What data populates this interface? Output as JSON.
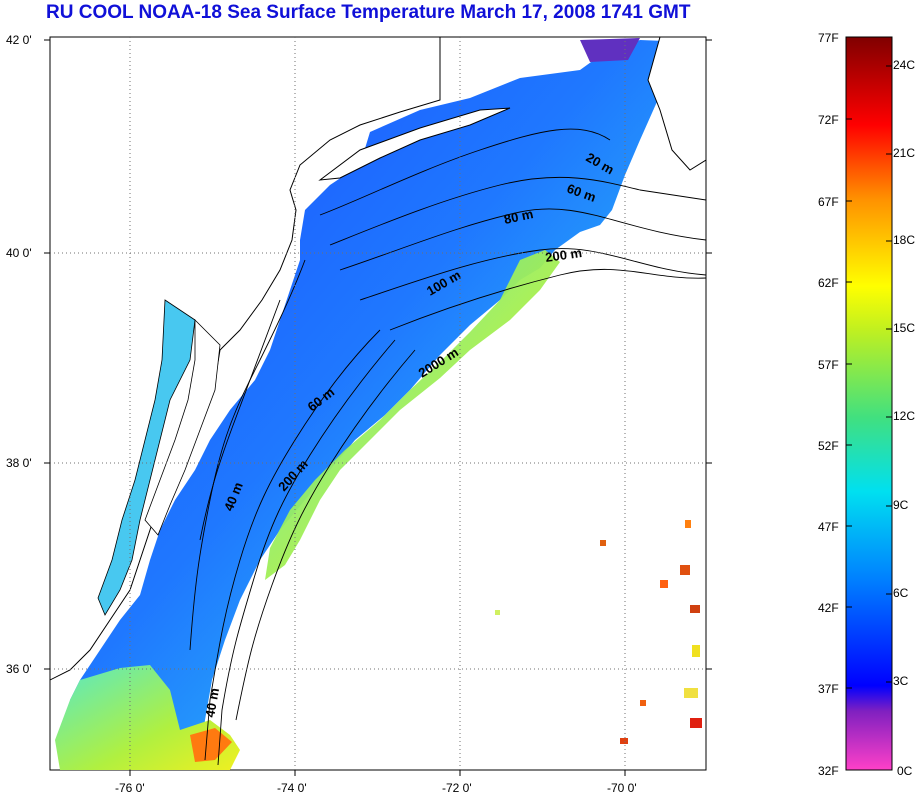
{
  "title": "RU COOL  NOAA-18 Sea Surface Temperature March 17, 2008 1741 GMT",
  "map": {
    "lat_labels": [
      "42 0'",
      "40 0'",
      "38 0'",
      "36 0'"
    ],
    "lon_labels": [
      "-76 0'",
      "-74 0'",
      "-72 0'",
      "-70 0'"
    ],
    "grid": "dotted",
    "contour_labels": [
      "20 m",
      "60 m",
      "80 m",
      "200 m",
      "100 m",
      "2000 m",
      "60 m",
      "200 m",
      "40 m",
      "40 m"
    ]
  },
  "colorbar": {
    "fahrenheit_labels": [
      "77F",
      "72F",
      "67F",
      "62F",
      "57F",
      "52F",
      "47F",
      "42F",
      "37F",
      "32F"
    ],
    "celsius_labels": [
      "24C",
      "21C",
      "18C",
      "15C",
      "12C",
      "9C",
      "6C",
      "3C",
      "0C"
    ],
    "colors": [
      "#ff40c8",
      "#8020c0",
      "#0000ff",
      "#0080ff",
      "#00e0f0",
      "#40e080",
      "#c0f020",
      "#ffff00",
      "#ff9000",
      "#ff0000",
      "#800000"
    ]
  }
}
